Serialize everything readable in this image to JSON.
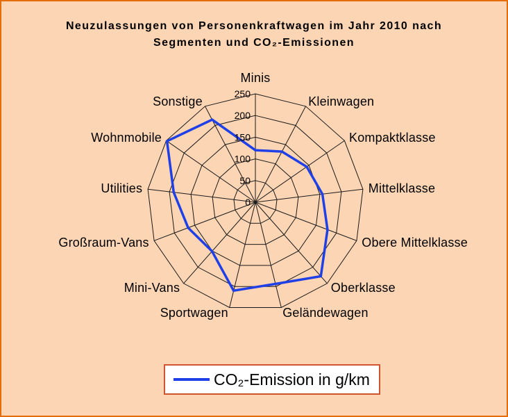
{
  "colors": {
    "background": "#FCD5B4",
    "frame_border": "#E46C0A",
    "legend_border": "#D2542C",
    "legend_background": "#FFFFFF",
    "grid": "#1A1A1A"
  },
  "chart_data": {
    "type": "radar",
    "title": "Neuzulassungen von Personenkraftwagen im Jahr 2010 nach\nSegmenten und CO₂-Emissionen",
    "categories": [
      "Minis",
      "Kleinwagen",
      "Kompaktklasse",
      "Mittelklasse",
      "Obere Mittelklasse",
      "Oberklasse",
      "Geländewagen",
      "Sportwagen",
      "Mini-Vans",
      "Großraum-Vans",
      "Utilities",
      "Wohnmobile",
      "Sonstige"
    ],
    "series": [
      {
        "name": "CO₂-Emission in g/km",
        "color": "#1F40E6",
        "values": [
          120,
          132,
          144,
          156,
          178,
          228,
          194,
          210,
          151,
          166,
          190,
          248,
          215
        ]
      }
    ],
    "radial_ticks": [
      0,
      50,
      100,
      150,
      200,
      250
    ],
    "rlim": [
      0,
      250
    ],
    "grid": true,
    "legend": "bottom"
  }
}
